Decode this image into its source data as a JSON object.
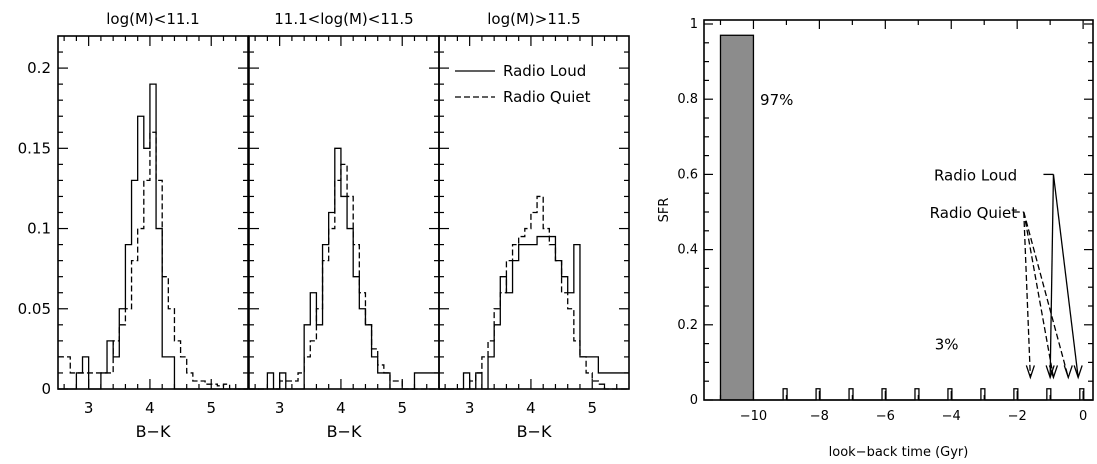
{
  "chart_data": [
    {
      "type": "line",
      "subtype": "histogram",
      "title": "log(M)<11.1",
      "xlabel": "B−K",
      "ylabel": "",
      "xlim": [
        2.5,
        5.6
      ],
      "ylim": [
        0,
        0.22
      ],
      "x_ticks": [
        3,
        4,
        5
      ],
      "y_ticks": [
        0,
        0.05,
        0.1,
        0.15,
        0.2
      ],
      "y_tick_labels": [
        "0",
        "0.05",
        "0.1",
        "0.15",
        "0.2"
      ],
      "series": [
        {
          "name": "Radio Loud",
          "style": "solid",
          "x": [
            2.5,
            2.6,
            2.7,
            2.8,
            2.9,
            3.0,
            3.1,
            3.2,
            3.3,
            3.4,
            3.5,
            3.6,
            3.7,
            3.8,
            3.9,
            4.0,
            4.1,
            4.2,
            4.3,
            4.4,
            4.5,
            4.6,
            4.7,
            4.8,
            4.9,
            5.0,
            5.1,
            5.2,
            5.3,
            5.4,
            5.5,
            5.6
          ],
          "values": [
            0.0,
            0.0,
            0.0,
            0.01,
            0.02,
            0.0,
            0.0,
            0.01,
            0.03,
            0.02,
            0.05,
            0.09,
            0.13,
            0.17,
            0.15,
            0.19,
            0.1,
            0.02,
            0.02,
            0.0,
            0.0,
            0.0,
            0.0,
            0.0,
            0.0,
            0.0,
            0.0,
            0.0,
            0.0,
            0.0,
            0.0,
            0.0
          ]
        },
        {
          "name": "Radio Quiet",
          "style": "dashed",
          "x": [
            2.5,
            2.6,
            2.7,
            2.8,
            2.9,
            3.0,
            3.1,
            3.2,
            3.3,
            3.4,
            3.5,
            3.6,
            3.7,
            3.8,
            3.9,
            4.0,
            4.1,
            4.2,
            4.3,
            4.4,
            4.5,
            4.6,
            4.7,
            4.8,
            4.9,
            5.0,
            5.1,
            5.2,
            5.3,
            5.4,
            5.5,
            5.6
          ],
          "values": [
            0.02,
            0.02,
            0.01,
            0.01,
            0.01,
            0.01,
            0.01,
            0.01,
            0.01,
            0.03,
            0.04,
            0.05,
            0.08,
            0.1,
            0.13,
            0.16,
            0.13,
            0.07,
            0.05,
            0.03,
            0.02,
            0.01,
            0.005,
            0.005,
            0.003,
            0.003,
            0.002,
            0.003,
            0.0,
            0.0,
            0.0,
            0.0
          ]
        }
      ],
      "legend": null
    },
    {
      "type": "line",
      "subtype": "histogram",
      "title": "11.1<log(M)<11.5",
      "xlabel": "B−K",
      "ylabel": "",
      "xlim": [
        2.5,
        5.6
      ],
      "ylim": [
        0,
        0.22
      ],
      "x_ticks": [
        3,
        4,
        5
      ],
      "series": [
        {
          "name": "Radio Loud",
          "style": "solid",
          "x": [
            2.5,
            2.6,
            2.7,
            2.8,
            2.9,
            3.0,
            3.1,
            3.2,
            3.3,
            3.4,
            3.5,
            3.6,
            3.7,
            3.8,
            3.9,
            4.0,
            4.1,
            4.2,
            4.3,
            4.4,
            4.5,
            4.6,
            4.7,
            4.8,
            4.9,
            5.0,
            5.1,
            5.2,
            5.3,
            5.4,
            5.5,
            5.6
          ],
          "values": [
            0.0,
            0.0,
            0.0,
            0.01,
            0.0,
            0.01,
            0.0,
            0.0,
            0.0,
            0.04,
            0.06,
            0.04,
            0.09,
            0.11,
            0.15,
            0.12,
            0.1,
            0.07,
            0.05,
            0.04,
            0.02,
            0.01,
            0.01,
            0.0,
            0.0,
            0.0,
            0.0,
            0.01,
            0.01,
            0.01,
            0.01,
            0.01
          ]
        },
        {
          "name": "Radio Quiet",
          "style": "dashed",
          "x": [
            2.5,
            2.6,
            2.7,
            2.8,
            2.9,
            3.0,
            3.1,
            3.2,
            3.3,
            3.4,
            3.5,
            3.6,
            3.7,
            3.8,
            3.9,
            4.0,
            4.1,
            4.2,
            4.3,
            4.4,
            4.5,
            4.6,
            4.7,
            4.8,
            4.9,
            5.0,
            5.1,
            5.2,
            5.3,
            5.4,
            5.5,
            5.6
          ],
          "values": [
            0.0,
            0.0,
            0.0,
            0.0,
            0.0,
            0.005,
            0.005,
            0.005,
            0.01,
            0.02,
            0.03,
            0.05,
            0.08,
            0.1,
            0.13,
            0.14,
            0.12,
            0.09,
            0.06,
            0.04,
            0.025,
            0.015,
            0.01,
            0.005,
            0.005,
            0.0,
            0.0,
            0.0,
            0.0,
            0.0,
            0.0,
            0.0
          ]
        }
      ],
      "legend": null
    },
    {
      "type": "line",
      "subtype": "histogram",
      "title": "log(M)>11.5",
      "xlabel": "B−K",
      "ylabel": "",
      "xlim": [
        2.5,
        5.6
      ],
      "ylim": [
        0,
        0.22
      ],
      "x_ticks": [
        3,
        4,
        5
      ],
      "series": [
        {
          "name": "Radio Loud",
          "style": "solid",
          "x": [
            2.5,
            2.6,
            2.7,
            2.8,
            2.9,
            3.0,
            3.1,
            3.2,
            3.3,
            3.4,
            3.5,
            3.6,
            3.7,
            3.8,
            3.9,
            4.0,
            4.1,
            4.2,
            4.3,
            4.4,
            4.5,
            4.6,
            4.7,
            4.8,
            4.9,
            5.0,
            5.1,
            5.2,
            5.3,
            5.4,
            5.5,
            5.6
          ],
          "values": [
            0.0,
            0.0,
            0.0,
            0.0,
            0.01,
            0.0,
            0.01,
            0.0,
            0.02,
            0.04,
            0.07,
            0.06,
            0.08,
            0.09,
            0.09,
            0.09,
            0.095,
            0.095,
            0.095,
            0.08,
            0.07,
            0.06,
            0.09,
            0.02,
            0.02,
            0.02,
            0.01,
            0.01,
            0.01,
            0.01,
            0.01,
            0.01
          ]
        },
        {
          "name": "Radio Quiet",
          "style": "dashed",
          "x": [
            2.5,
            2.6,
            2.7,
            2.8,
            2.9,
            3.0,
            3.1,
            3.2,
            3.3,
            3.4,
            3.5,
            3.6,
            3.7,
            3.8,
            3.9,
            4.0,
            4.1,
            4.2,
            4.3,
            4.4,
            4.5,
            4.6,
            4.7,
            4.8,
            4.9,
            5.0,
            5.1,
            5.2,
            5.3,
            5.4,
            5.5,
            5.6
          ],
          "values": [
            0.0,
            0.0,
            0.0,
            0.0,
            0.0,
            0.005,
            0.01,
            0.02,
            0.03,
            0.05,
            0.06,
            0.08,
            0.09,
            0.095,
            0.1,
            0.11,
            0.12,
            0.1,
            0.09,
            0.08,
            0.06,
            0.05,
            0.03,
            0.02,
            0.01,
            0.005,
            0.003,
            0.0,
            0.0,
            0.0,
            0.0,
            0.0
          ]
        }
      ],
      "legend": {
        "position": "top-right",
        "entries": [
          {
            "label": "Radio Loud",
            "style": "solid"
          },
          {
            "label": "Radio Quiet",
            "style": "dashed"
          }
        ]
      }
    },
    {
      "type": "bar",
      "title": "",
      "xlabel": "look−back time (Gyr)",
      "ylabel": "SFR",
      "xlim": [
        -11.5,
        0.3
      ],
      "ylim": [
        0,
        1.0
      ],
      "x_ticks": [
        -10,
        -8,
        -6,
        -4,
        -2,
        0
      ],
      "x_tick_labels": [
        "−10",
        "−8",
        "−6",
        "−4",
        "−2",
        "0"
      ],
      "y_ticks": [
        0,
        0.2,
        0.4,
        0.6,
        0.8,
        1
      ],
      "y_tick_labels": [
        "0",
        "0.2",
        "0.4",
        "0.6",
        "0.8",
        "1"
      ],
      "main_burst": {
        "x_start": -11.0,
        "x_end": -10.0,
        "value": 0.97
      },
      "small_bursts": [
        -9.1,
        -8.1,
        -7.1,
        -6.1,
        -5.1,
        -4.1,
        -3.1,
        -2.1,
        -1.1,
        -0.1
      ],
      "small_burst_value": 0.03,
      "annotations": [
        {
          "text": "97%",
          "x": -9.8,
          "y": 0.8
        },
        {
          "text": "3%",
          "x": -4.5,
          "y": 0.15
        },
        {
          "text": "Radio Loud",
          "x": -2.0,
          "y": 0.6,
          "style": "solid",
          "pointer_x": -0.9,
          "pointer_y": 0.6,
          "arrow_targets_x": [
            -1.0,
            -0.15
          ]
        },
        {
          "text": "Radio Quiet",
          "x": -2.0,
          "y": 0.5,
          "style": "dashed",
          "pointer_x": -1.8,
          "pointer_y": 0.5,
          "arrow_targets_x": [
            -1.6,
            -0.9,
            -0.45
          ]
        }
      ]
    }
  ]
}
